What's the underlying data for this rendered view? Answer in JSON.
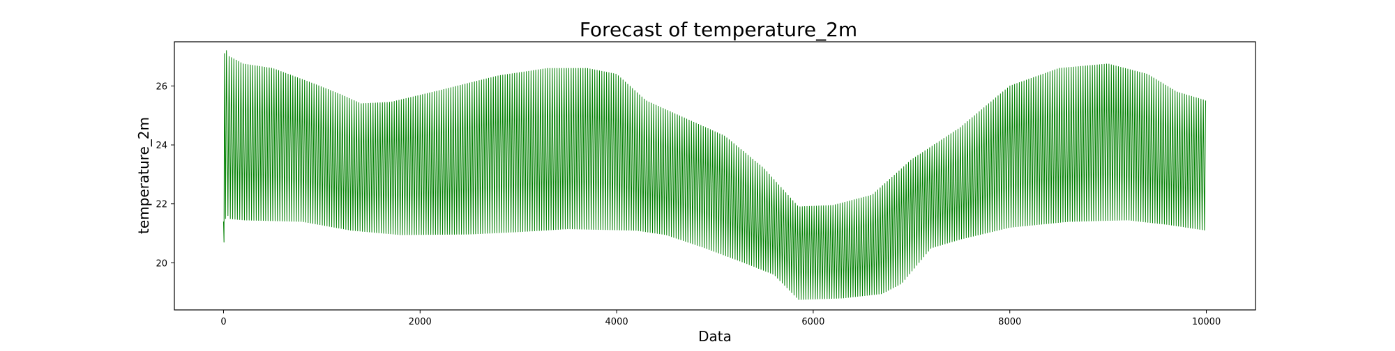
{
  "chart_data": {
    "type": "line",
    "title": "Forecast of temperature_2m",
    "xlabel": "Data",
    "ylabel": "temperature_2m",
    "xlim": [
      -500,
      10500
    ],
    "ylim": [
      18.4,
      27.5
    ],
    "x_ticks": [
      0,
      2000,
      4000,
      6000,
      8000,
      10000
    ],
    "x_tick_labels": [
      "0",
      "2000",
      "4000",
      "6000",
      "8000",
      "10000"
    ],
    "y_ticks": [
      20,
      22,
      24,
      26
    ],
    "y_tick_labels": [
      "20",
      "22",
      "24",
      "26"
    ],
    "grid": false,
    "legend": "none",
    "series": [
      {
        "color": "#008000",
        "cycle_length": 24,
        "x_range": [
          0,
          10000
        ],
        "initial_points": [
          {
            "x": 0,
            "y": 21.4
          },
          {
            "x": 5,
            "y": 20.7
          },
          {
            "x": 10,
            "y": 27.1
          },
          {
            "x": 20,
            "y": 21.5
          },
          {
            "x": 30,
            "y": 27.2
          },
          {
            "x": 45,
            "y": 21.6
          }
        ],
        "upper_envelope": [
          {
            "x": 60,
            "y": 27.0
          },
          {
            "x": 200,
            "y": 26.75
          },
          {
            "x": 500,
            "y": 26.6
          },
          {
            "x": 900,
            "y": 26.1
          },
          {
            "x": 1200,
            "y": 25.7
          },
          {
            "x": 1400,
            "y": 25.4
          },
          {
            "x": 1700,
            "y": 25.45
          },
          {
            "x": 2200,
            "y": 25.85
          },
          {
            "x": 2800,
            "y": 26.35
          },
          {
            "x": 3300,
            "y": 26.6
          },
          {
            "x": 3700,
            "y": 26.6
          },
          {
            "x": 4000,
            "y": 26.4
          },
          {
            "x": 4300,
            "y": 25.5
          },
          {
            "x": 4700,
            "y": 24.9
          },
          {
            "x": 5100,
            "y": 24.3
          },
          {
            "x": 5500,
            "y": 23.2
          },
          {
            "x": 5850,
            "y": 21.9
          },
          {
            "x": 6200,
            "y": 21.95
          },
          {
            "x": 6600,
            "y": 22.3
          },
          {
            "x": 7000,
            "y": 23.5
          },
          {
            "x": 7500,
            "y": 24.6
          },
          {
            "x": 8000,
            "y": 26.0
          },
          {
            "x": 8500,
            "y": 26.6
          },
          {
            "x": 9000,
            "y": 26.75
          },
          {
            "x": 9400,
            "y": 26.4
          },
          {
            "x": 9700,
            "y": 25.8
          },
          {
            "x": 10000,
            "y": 25.5
          }
        ],
        "lower_envelope": [
          {
            "x": 60,
            "y": 21.5
          },
          {
            "x": 200,
            "y": 21.45
          },
          {
            "x": 800,
            "y": 21.4
          },
          {
            "x": 1300,
            "y": 21.1
          },
          {
            "x": 1800,
            "y": 20.95
          },
          {
            "x": 2500,
            "y": 20.97
          },
          {
            "x": 3000,
            "y": 21.05
          },
          {
            "x": 3500,
            "y": 21.15
          },
          {
            "x": 4200,
            "y": 21.1
          },
          {
            "x": 4500,
            "y": 20.95
          },
          {
            "x": 4900,
            "y": 20.5
          },
          {
            "x": 5300,
            "y": 20.0
          },
          {
            "x": 5600,
            "y": 19.6
          },
          {
            "x": 5850,
            "y": 18.75
          },
          {
            "x": 6300,
            "y": 18.8
          },
          {
            "x": 6700,
            "y": 18.95
          },
          {
            "x": 6900,
            "y": 19.3
          },
          {
            "x": 7200,
            "y": 20.5
          },
          {
            "x": 7500,
            "y": 20.8
          },
          {
            "x": 8000,
            "y": 21.2
          },
          {
            "x": 8600,
            "y": 21.4
          },
          {
            "x": 9200,
            "y": 21.45
          },
          {
            "x": 9600,
            "y": 21.3
          },
          {
            "x": 10000,
            "y": 21.1
          }
        ]
      }
    ]
  }
}
